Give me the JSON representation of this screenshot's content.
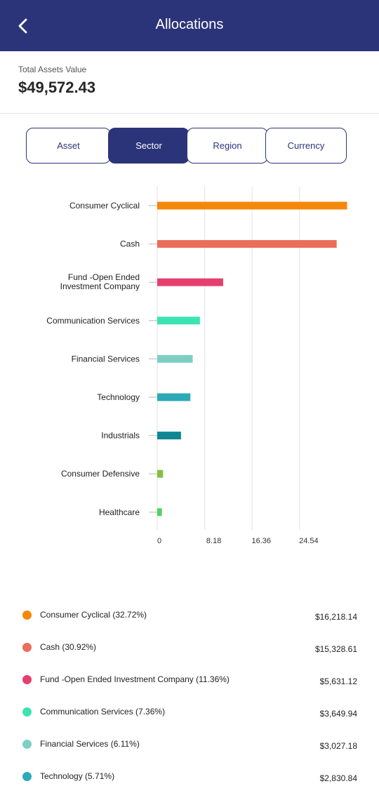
{
  "header": {
    "title": "Allocations",
    "back_icon": "chevron-left-icon"
  },
  "summary": {
    "label": "Total Assets Value",
    "value": "$49,572.43"
  },
  "tabs": [
    {
      "label": "Asset",
      "active": false
    },
    {
      "label": "Sector",
      "active": true
    },
    {
      "label": "Region",
      "active": false
    },
    {
      "label": "Currency",
      "active": false
    }
  ],
  "chart_data": {
    "type": "bar",
    "orientation": "horizontal",
    "categories": [
      "Consumer Cyclical",
      "Cash",
      "Fund -Open Ended Investment Company",
      "Communication Services",
      "Financial Services",
      "Technology",
      "Industrials",
      "Consumer Defensive",
      "Healthcare"
    ],
    "values": [
      32.72,
      30.92,
      11.36,
      7.36,
      6.11,
      5.71,
      4.1,
      1.0,
      0.8
    ],
    "colors": [
      "#f5880b",
      "#ea6e5a",
      "#e53f6f",
      "#3ce3b3",
      "#7ecfc3",
      "#2caab8",
      "#0f8693",
      "#7dc243",
      "#4fd45a"
    ],
    "xticks": [
      "0",
      "8.18",
      "16.36",
      "24.54"
    ],
    "xtick_values": [
      0,
      8.18,
      16.36,
      24.54
    ],
    "xlim": [
      0,
      33.5
    ],
    "grid": true
  },
  "legend": [
    {
      "label": "Consumer Cyclical (32.72%)",
      "value": "$16,218.14",
      "color": "#f5880b"
    },
    {
      "label": "Cash (30.92%)",
      "value": "$15,328.61",
      "color": "#ea6e5a"
    },
    {
      "label": "Fund -Open Ended Investment Company (11.36%)",
      "value": "$5,631.12",
      "color": "#e53f6f"
    },
    {
      "label": "Communication Services (7.36%)",
      "value": "$3,649.94",
      "color": "#3ce3b3"
    },
    {
      "label": "Financial Services (6.11%)",
      "value": "$3,027.18",
      "color": "#7ecfc3"
    },
    {
      "label": "Technology (5.71%)",
      "value": "$2,830.84",
      "color": "#2caab8"
    }
  ]
}
